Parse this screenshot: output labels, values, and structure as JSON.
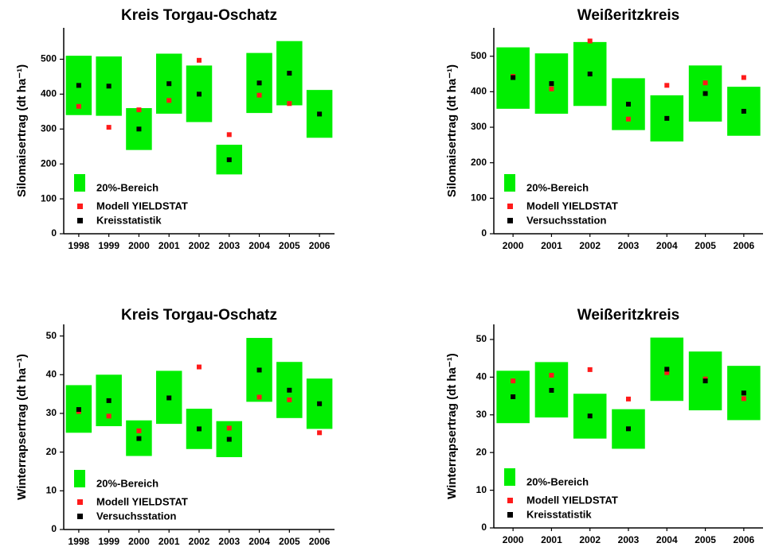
{
  "chart_data": [
    {
      "type": "floating-bar",
      "title": "Kreis Torgau-Oschatz",
      "y_label": "Silomaisertrag (dt ha⁻¹)",
      "categories": [
        "1998",
        "1999",
        "2000",
        "2001",
        "2002",
        "2003",
        "2004",
        "2005",
        "2006"
      ],
      "series": [
        {
          "name": "20%-Bereich",
          "color": "#00ee00",
          "low": [
            340,
            338,
            240,
            344,
            320,
            170,
            346,
            368,
            275
          ],
          "high": [
            510,
            508,
            360,
            516,
            482,
            255,
            518,
            552,
            412
          ]
        },
        {
          "name": "Modell YIELDSTAT",
          "color": "#ff1a1a",
          "values": [
            365,
            305,
            355,
            382,
            497,
            284,
            397,
            373,
            null
          ]
        },
        {
          "name": "Kreisstatistik",
          "color": "#000000",
          "values": [
            425,
            423,
            300,
            430,
            400,
            212,
            432,
            460,
            343
          ]
        }
      ],
      "ylim": [
        0,
        590
      ],
      "yticks": [
        0,
        100,
        200,
        300,
        400,
        500
      ],
      "legend": "lower left"
    },
    {
      "type": "floating-bar",
      "title": "Weißeritzkreis",
      "y_label": "Silomaisertrag (dt ha⁻¹)",
      "categories": [
        "2000",
        "2001",
        "2002",
        "2003",
        "2004",
        "2005",
        "2006"
      ],
      "series": [
        {
          "name": "20%-Bereich",
          "color": "#00ee00",
          "low": [
            352,
            338,
            360,
            292,
            260,
            316,
            276
          ],
          "high": [
            525,
            508,
            540,
            438,
            390,
            474,
            414
          ]
        },
        {
          "name": "Modell YIELDSTAT",
          "color": "#ff1a1a",
          "values": [
            443,
            408,
            543,
            323,
            418,
            425,
            440
          ]
        },
        {
          "name": "Versuchsstation",
          "color": "#000000",
          "values": [
            440,
            423,
            450,
            365,
            325,
            395,
            345
          ]
        }
      ],
      "ylim": [
        0,
        580
      ],
      "yticks": [
        0,
        100,
        200,
        300,
        400,
        500
      ],
      "legend": "lower left"
    },
    {
      "type": "floating-bar",
      "title": "Kreis Torgau-Oschatz",
      "y_label": "Winterrapsertrag (dt ha⁻¹)",
      "categories": [
        "1998",
        "1999",
        "2000",
        "2001",
        "2002",
        "2003",
        "2004",
        "2005",
        "2006"
      ],
      "series": [
        {
          "name": "20%-Bereich",
          "color": "#00ee00",
          "low": [
            25,
            26.7,
            19,
            27.3,
            20.8,
            18.7,
            33,
            28.8,
            26
          ],
          "high": [
            37.3,
            40,
            28.2,
            41,
            31.2,
            28,
            49.5,
            43.3,
            39
          ]
        },
        {
          "name": "Modell YIELDSTAT",
          "color": "#ff1a1a",
          "values": [
            30.5,
            29.3,
            25.5,
            null,
            42,
            26.2,
            34.2,
            33.5,
            25
          ]
        },
        {
          "name": "Versuchsstation",
          "color": "#000000",
          "values": [
            31,
            33.3,
            23.5,
            34,
            26,
            23.3,
            41.2,
            36,
            32.5
          ]
        }
      ],
      "ylim": [
        0,
        53
      ],
      "yticks": [
        0,
        10,
        20,
        30,
        40,
        50
      ],
      "legend": "lower left"
    },
    {
      "type": "floating-bar",
      "title": "Weißeritzkreis",
      "y_label": "Winterrapsertrag (dt ha⁻¹)",
      "categories": [
        "2000",
        "2001",
        "2002",
        "2003",
        "2004",
        "2005",
        "2006"
      ],
      "series": [
        {
          "name": "20%-Bereich",
          "color": "#00ee00",
          "low": [
            27.8,
            29.3,
            23.7,
            21,
            33.7,
            31.2,
            28.6
          ],
          "high": [
            41.7,
            44,
            35.6,
            31.5,
            50.5,
            46.8,
            43
          ]
        },
        {
          "name": "Modell YIELDSTAT",
          "color": "#ff1a1a",
          "values": [
            39,
            40.5,
            42,
            34.2,
            41.2,
            39.5,
            34.3
          ]
        },
        {
          "name": "Kreisstatistik",
          "color": "#000000",
          "values": [
            34.8,
            36.5,
            29.7,
            26.3,
            42.1,
            39,
            35.8
          ]
        }
      ],
      "ylim": [
        0,
        54
      ],
      "yticks": [
        0,
        10,
        20,
        30,
        40,
        50
      ],
      "legend": "lower left"
    }
  ]
}
